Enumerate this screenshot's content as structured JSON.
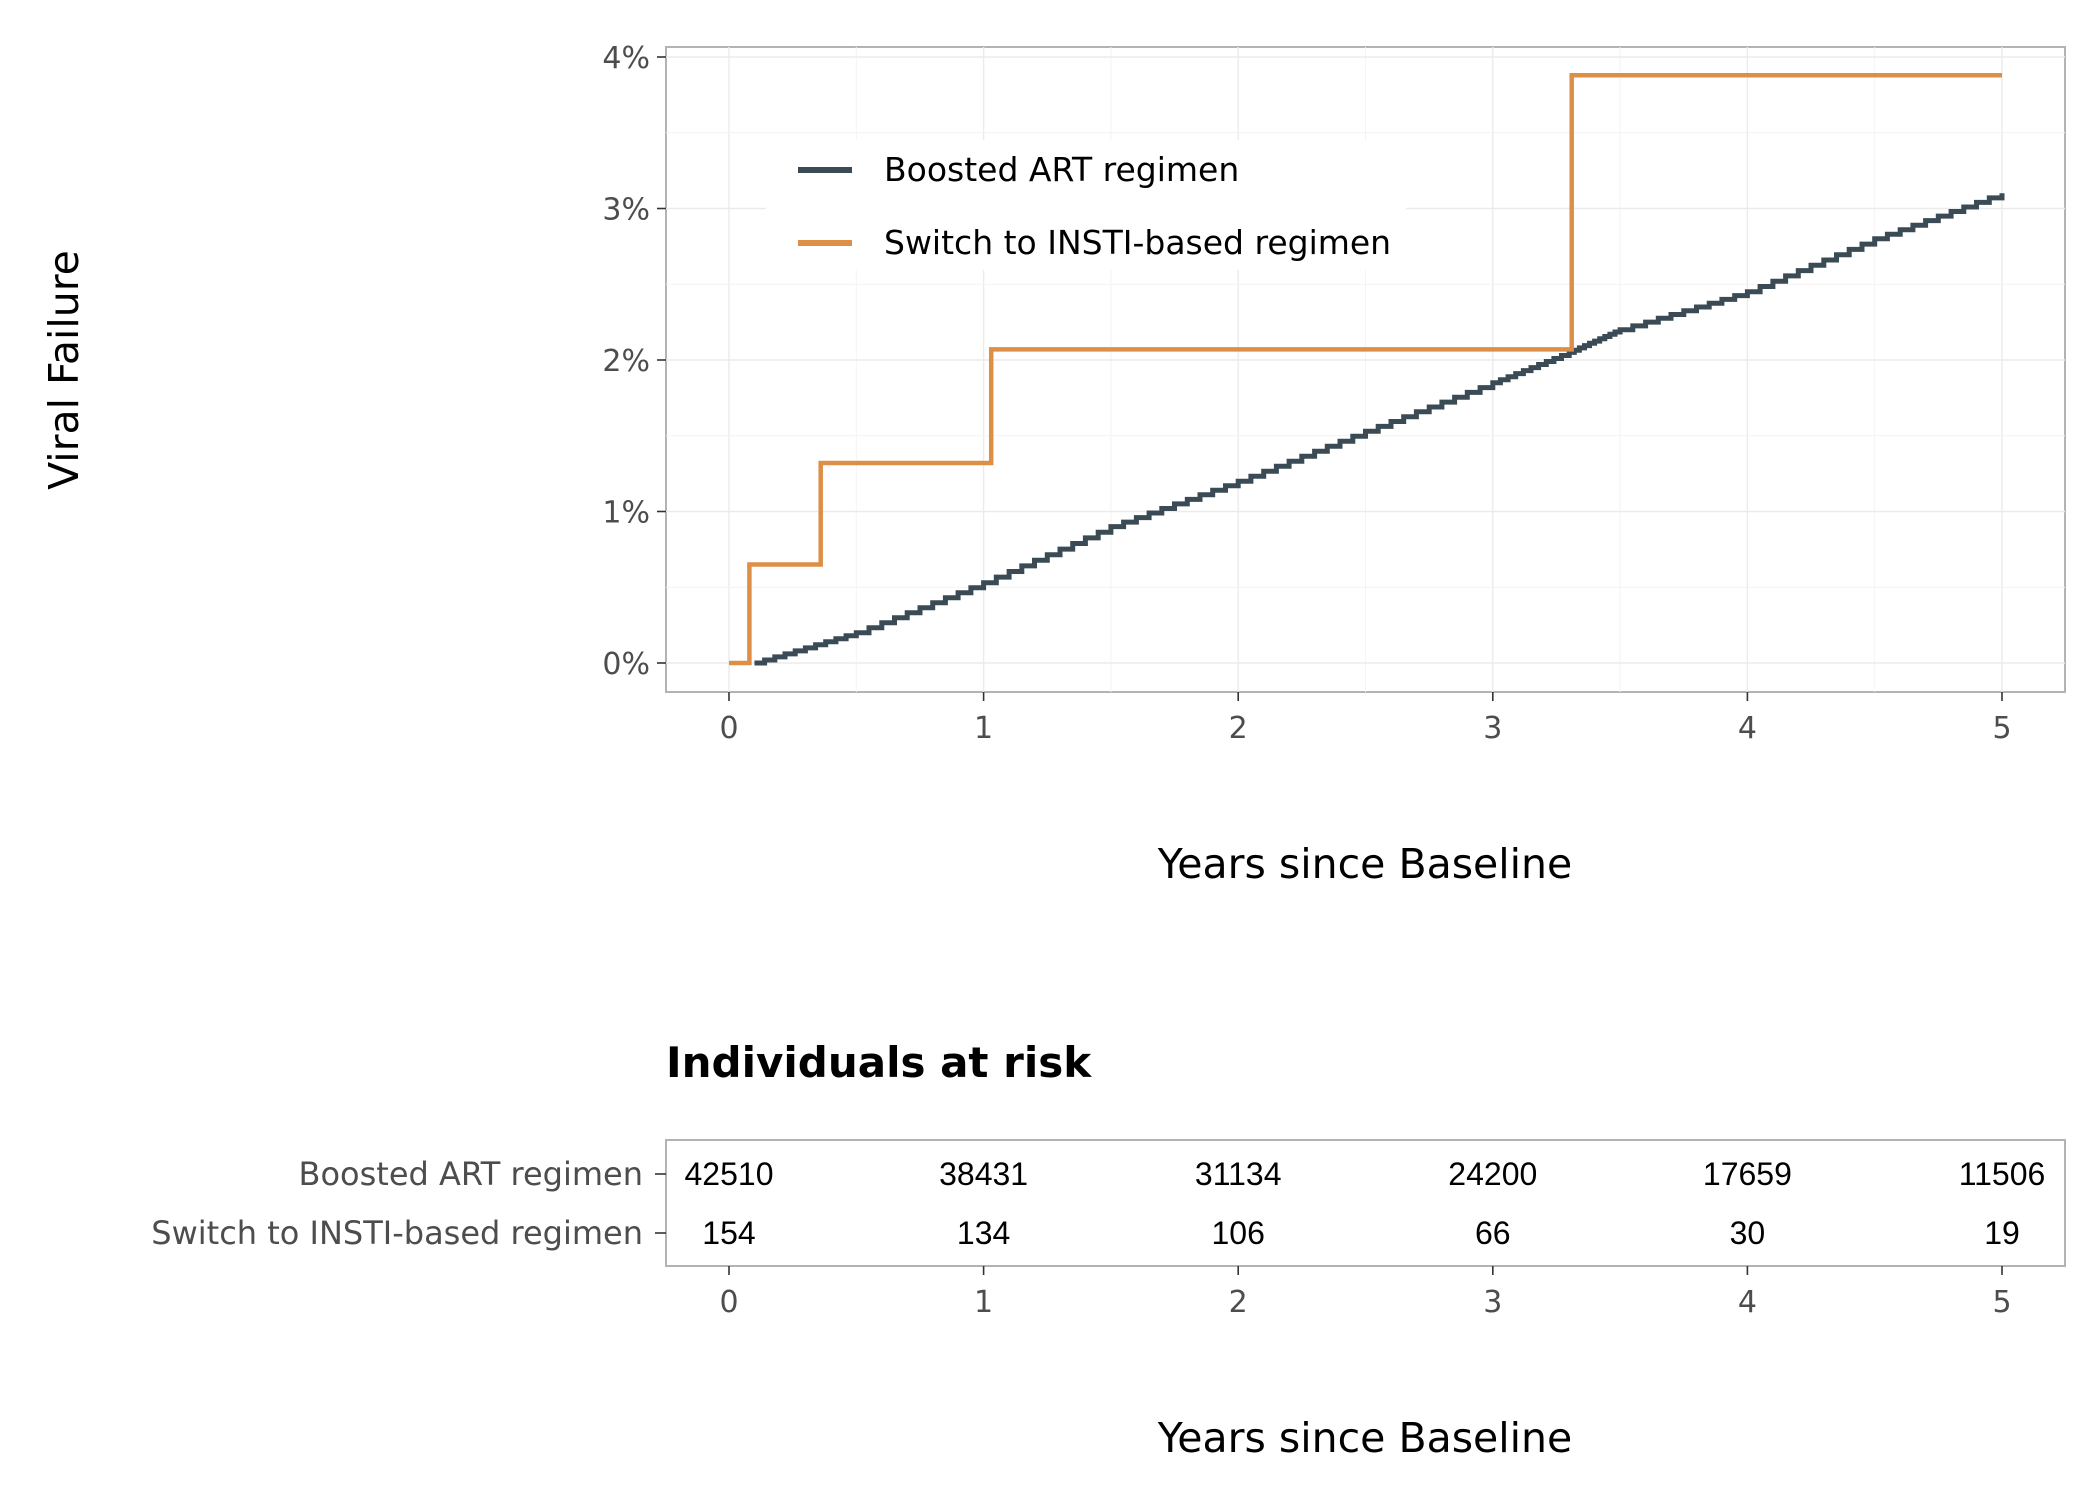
{
  "chart_data": [
    {
      "type": "line",
      "step": true,
      "xlabel": "Years since Baseline",
      "ylabel": "Viral Failure",
      "xlim": [
        0,
        5
      ],
      "ylim": [
        0,
        4
      ],
      "x_ticks": [
        "0",
        "1",
        "2",
        "3",
        "4",
        "5"
      ],
      "y_ticks": [
        "0%",
        "1%",
        "2%",
        "3%",
        "4%"
      ],
      "grid": true,
      "legend_position": "top-left",
      "series": [
        {
          "name": "Boosted ART regimen",
          "color": "#3b4b55",
          "x": [
            0.1,
            0.5,
            1.0,
            1.5,
            2.0,
            2.5,
            3.0,
            3.3,
            3.5,
            4.0,
            4.5,
            5.0
          ],
          "y": [
            0.0,
            0.2,
            0.53,
            0.9,
            1.2,
            1.53,
            1.85,
            2.05,
            2.2,
            2.45,
            2.8,
            3.1
          ]
        },
        {
          "name": "Switch to INSTI-based regimen",
          "color": "#dd8f47",
          "x": [
            0.0,
            0.08,
            0.36,
            1.03,
            3.31,
            5.0
          ],
          "y": [
            0.0,
            0.65,
            1.32,
            2.07,
            3.88,
            3.88
          ]
        }
      ]
    },
    {
      "type": "table",
      "title": "Individuals at risk",
      "xlabel": "Years since Baseline",
      "x_ticks": [
        "0",
        "1",
        "2",
        "3",
        "4",
        "5"
      ],
      "rows": [
        {
          "label": "Boosted ART regimen",
          "values": [
            "42510",
            "38431",
            "31134",
            "24200",
            "17659",
            "11506"
          ]
        },
        {
          "label": "Switch to INSTI-based regimen",
          "values": [
            "154",
            "134",
            "106",
            "66",
            "30",
            "19"
          ]
        }
      ]
    }
  ]
}
